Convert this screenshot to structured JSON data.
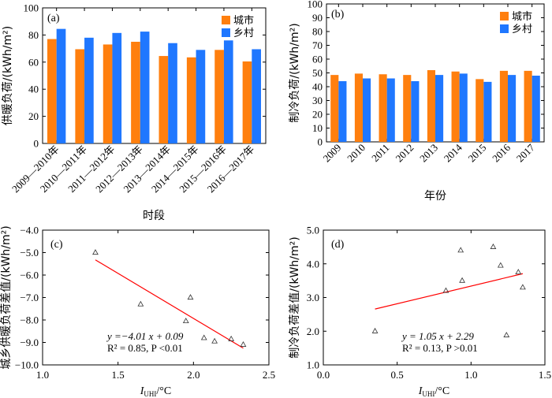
{
  "colors": {
    "urban": "#ff7f0e",
    "rural": "#1f77ff",
    "fit_line": "#ff0000",
    "axis": "#000000"
  },
  "chart_data": [
    {
      "panel": "(a)",
      "type": "bar",
      "categories": [
        "2009—2010年",
        "2010—2011年",
        "2011—2012年",
        "2012—2013年",
        "2013—2014年",
        "2014—2015年",
        "2015—2016年",
        "2016—2017年"
      ],
      "series": [
        {
          "name": "城市",
          "values": [
            77,
            69.5,
            73,
            75,
            64.5,
            63.5,
            69,
            60.5
          ]
        },
        {
          "name": "乡村",
          "values": [
            84.5,
            78,
            81.5,
            82.5,
            74,
            69,
            76,
            69.5
          ]
        }
      ],
      "xlabel": "时段",
      "ylabel": "供暖负荷/(kWh/m²)",
      "ylim": [
        0,
        100
      ],
      "yticks": [
        "0",
        "20",
        "40",
        "60",
        "80",
        "100"
      ],
      "legend": "top-right"
    },
    {
      "panel": "(b)",
      "type": "bar",
      "categories": [
        "2009",
        "2010",
        "2011",
        "2012",
        "2013",
        "2014",
        "2015",
        "2016",
        "2017"
      ],
      "series": [
        {
          "name": "城市",
          "values": [
            48.5,
            49.5,
            49,
            48.5,
            52,
            51,
            45.5,
            51.5,
            51.5
          ]
        },
        {
          "name": "乡村",
          "values": [
            44,
            46,
            46,
            44,
            48.5,
            49.5,
            43.5,
            48.5,
            48
          ]
        }
      ],
      "xlabel": "年份",
      "ylabel": "制冷负荷/(kWh/m²)",
      "ylim": [
        0,
        100
      ],
      "yticks": [
        "0",
        "10",
        "20",
        "30",
        "40",
        "50",
        "60",
        "70",
        "80",
        "90",
        "100"
      ],
      "legend": "top-right"
    },
    {
      "panel": "(c)",
      "type": "scatter",
      "points": [
        [
          1.35,
          -5.0
        ],
        [
          1.65,
          -7.3
        ],
        [
          1.95,
          -8.05
        ],
        [
          1.98,
          -7.0
        ],
        [
          2.07,
          -8.8
        ],
        [
          2.14,
          -8.95
        ],
        [
          2.25,
          -8.85
        ],
        [
          2.33,
          -9.1
        ]
      ],
      "fit": {
        "slope": -4.01,
        "intercept": 0.09,
        "x_range": [
          1.35,
          2.33
        ]
      },
      "equation": "y =−4.01 x + 0.09",
      "stats": "R² = 0.85, P <0.01",
      "xlabel": "I_UHI/°C",
      "ylabel": "城乡供暖负荷差值/(kWh/m²)",
      "xlim": [
        1.0,
        2.5
      ],
      "ylim": [
        -10.0,
        -4.0
      ],
      "xticks": [
        "1.0",
        "1.5",
        "2.0",
        "2.5"
      ],
      "yticks": [
        "-10.0",
        "-9.0",
        "-8.0",
        "-7.0",
        "-6.0",
        "-5.0",
        "-4.0"
      ]
    },
    {
      "panel": "(d)",
      "type": "scatter",
      "points": [
        [
          0.35,
          2.0
        ],
        [
          0.83,
          3.2
        ],
        [
          0.93,
          4.4
        ],
        [
          0.94,
          3.5
        ],
        [
          1.15,
          4.5
        ],
        [
          1.2,
          3.95
        ],
        [
          1.24,
          1.88
        ],
        [
          1.32,
          3.75
        ],
        [
          1.35,
          3.3
        ]
      ],
      "fit": {
        "slope": 1.05,
        "intercept": 2.29,
        "x_range": [
          0.35,
          1.35
        ]
      },
      "equation": "y = 1.05 x + 2.29",
      "stats": "R² = 0.13, P >0.01",
      "xlabel": "I_UHI/°C",
      "ylabel": "制冷负荷差值/(kWh/m²)",
      "xlim": [
        0.0,
        1.5
      ],
      "ylim": [
        1.0,
        5.0
      ],
      "xticks": [
        "0.0",
        "0.5",
        "1.0",
        "1.5"
      ],
      "yticks": [
        "1.0",
        "2.0",
        "3.0",
        "4.0",
        "5.0"
      ]
    }
  ]
}
